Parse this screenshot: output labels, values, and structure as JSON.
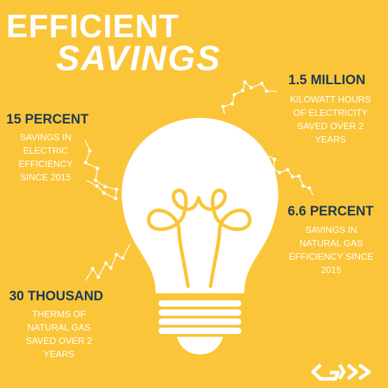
{
  "title": {
    "line1": "EFFICIENT",
    "line2": "SAVINGS"
  },
  "stats": [
    {
      "value": "15 PERCENT",
      "desc": [
        "SAVINGS IN",
        "ELECTRIC",
        "EFFICIENCY",
        "SINCE 2015"
      ]
    },
    {
      "value": "1.5 MILLION",
      "desc": [
        "KILOWATT HOURS",
        "OF ELECTRICITY",
        "SAVED OVER 2",
        "YEARS"
      ]
    },
    {
      "value": "6.6 PERCENT",
      "desc": [
        "SAVINGS IN",
        "NATURAL GAS",
        "EFFICIENCY SINCE",
        "2015"
      ]
    },
    {
      "value": "30 THOUSAND",
      "desc": [
        "THERMS OF",
        "NATURAL GAS",
        "SAVED OVER 2",
        "YEARS"
      ]
    }
  ],
  "colors": {
    "background": "#fac538",
    "accent": "#1d3a56",
    "text": "#ffffff"
  },
  "icons": {
    "main": "light-bulb-icon",
    "logo": "gkn-logo-icon"
  }
}
